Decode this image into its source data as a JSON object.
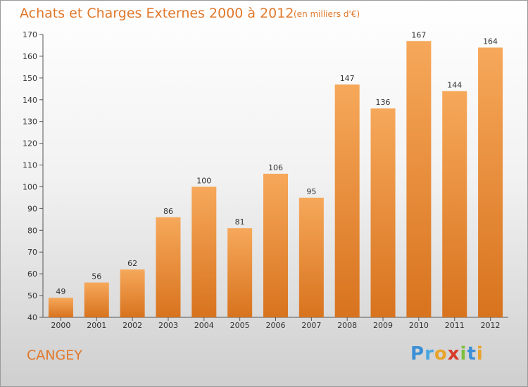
{
  "title": "Achats et Charges Externes 2000 à 2012",
  "subtitle": "(en milliers d'€)",
  "town": "CANGEY",
  "logo": {
    "letters": [
      "P",
      "r",
      "o",
      "x",
      "i",
      "t",
      "i"
    ],
    "colors": [
      "#3a8fd6",
      "#4aa7e0",
      "#e8a32a",
      "#d93a2b",
      "#7cbf3a",
      "#3a8fd6",
      "#e8a32a"
    ]
  },
  "colors": {
    "bar_top": "#f6a85a",
    "bar_bottom": "#d8731e",
    "text_accent": "#e0782a"
  },
  "chart_data": {
    "type": "bar",
    "categories": [
      "2000",
      "2001",
      "2002",
      "2003",
      "2004",
      "2005",
      "2006",
      "2007",
      "2008",
      "2009",
      "2010",
      "2011",
      "2012"
    ],
    "values": [
      49,
      56,
      62,
      86,
      100,
      81,
      106,
      95,
      147,
      136,
      167,
      144,
      164
    ],
    "ylim": [
      40,
      170
    ],
    "yticks": [
      40,
      50,
      60,
      70,
      80,
      90,
      100,
      110,
      120,
      130,
      140,
      150,
      160,
      170
    ],
    "grid": false,
    "title": "Achats et Charges Externes 2000 à 2012",
    "xlabel": "",
    "ylabel": ""
  }
}
